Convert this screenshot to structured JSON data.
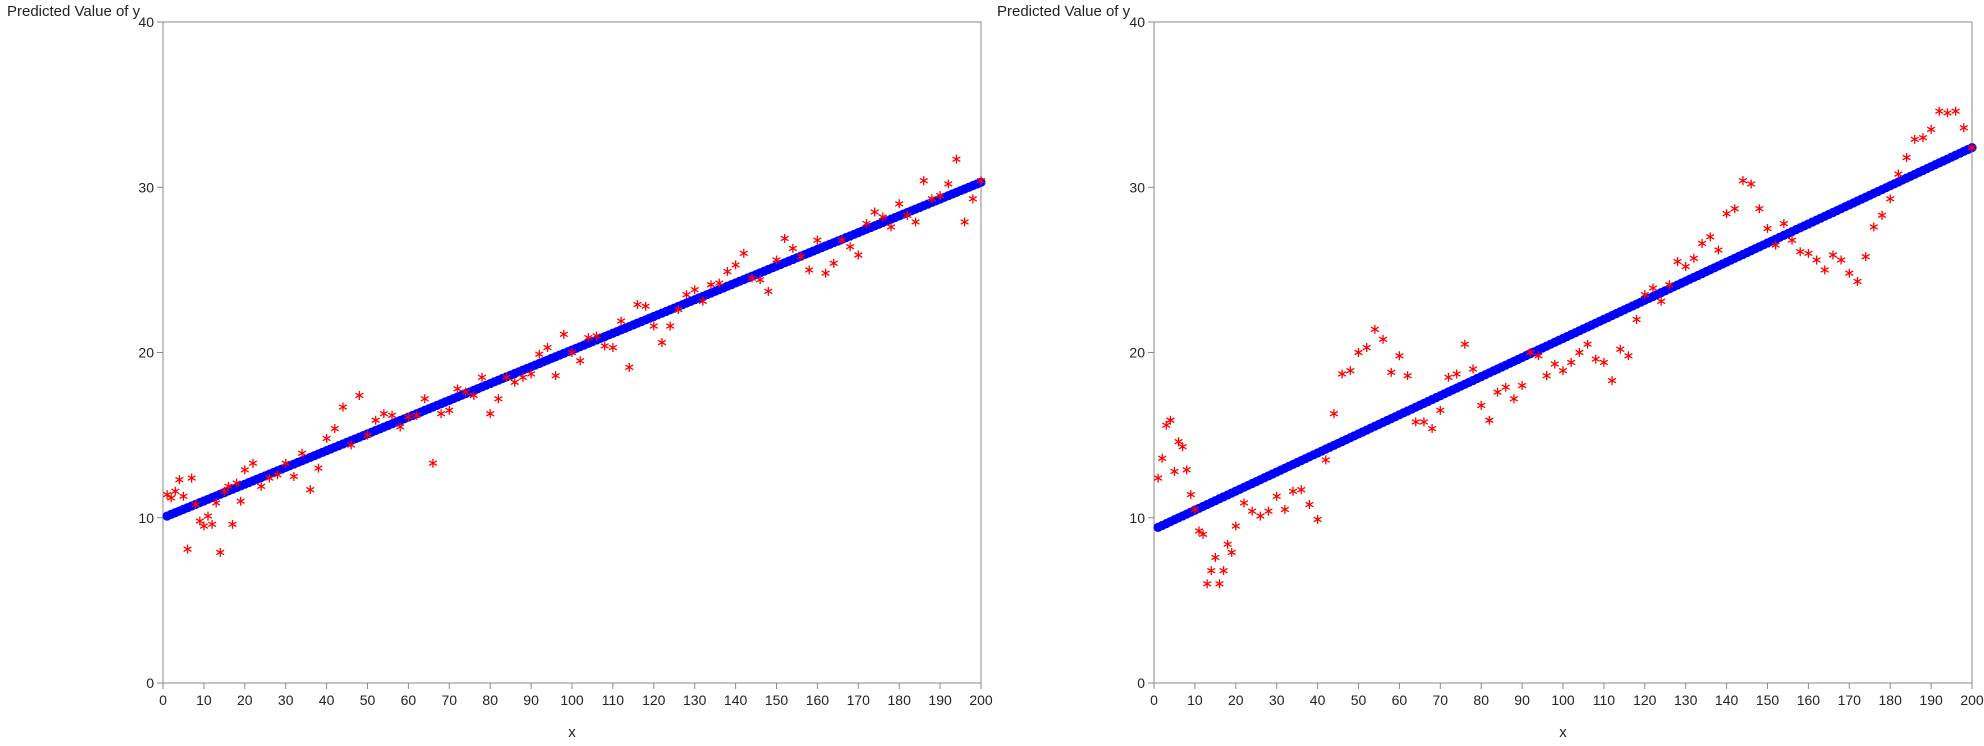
{
  "chart_data": [
    {
      "type": "scatter",
      "ylabel": "Predicted Value of y",
      "xlabel": "x",
      "xlim": [
        0,
        200
      ],
      "ylim": [
        0,
        40
      ],
      "xticks": [
        0,
        10,
        20,
        30,
        40,
        50,
        60,
        70,
        80,
        90,
        100,
        110,
        120,
        130,
        140,
        150,
        160,
        170,
        180,
        190,
        200
      ],
      "yticks": [
        0,
        10,
        20,
        30,
        40
      ],
      "grid": false,
      "series": [
        {
          "marker": "circle",
          "color": "#0000ff",
          "fit": {
            "intercept": 10.0,
            "slope": 0.1015
          },
          "x_range": [
            1,
            200
          ]
        },
        {
          "marker": "star",
          "color": "#ff0000",
          "x": [
            1,
            2,
            3,
            4,
            5,
            6,
            7,
            8,
            9,
            10,
            11,
            12,
            13,
            14,
            15,
            16,
            17,
            18,
            19,
            20,
            22,
            24,
            26,
            28,
            30,
            32,
            34,
            36,
            38,
            40,
            42,
            44,
            46,
            48,
            50,
            52,
            54,
            56,
            58,
            60,
            62,
            64,
            66,
            68,
            70,
            72,
            74,
            76,
            78,
            80,
            82,
            84,
            86,
            88,
            90,
            92,
            94,
            96,
            98,
            100,
            102,
            104,
            106,
            108,
            110,
            112,
            114,
            116,
            118,
            120,
            122,
            124,
            126,
            128,
            130,
            132,
            134,
            136,
            138,
            140,
            142,
            144,
            146,
            148,
            150,
            152,
            154,
            156,
            158,
            160,
            162,
            164,
            166,
            168,
            170,
            172,
            174,
            176,
            178,
            180,
            182,
            184,
            186,
            188,
            190,
            192,
            194,
            196,
            198,
            200
          ],
          "y": [
            11.4,
            11.2,
            11.6,
            12.3,
            11.3,
            8.1,
            12.4,
            10.8,
            9.8,
            9.5,
            10.1,
            9.6,
            10.9,
            7.9,
            11.6,
            11.9,
            9.6,
            12.1,
            11.0,
            12.9,
            13.3,
            11.9,
            12.4,
            12.6,
            13.3,
            12.5,
            13.9,
            11.7,
            13.0,
            14.8,
            15.4,
            16.7,
            14.4,
            17.4,
            15.0,
            15.9,
            16.3,
            16.2,
            15.5,
            16.1,
            16.2,
            17.2,
            13.3,
            16.3,
            16.5,
            17.8,
            17.6,
            17.4,
            18.5,
            16.3,
            17.2,
            18.5,
            18.2,
            18.5,
            18.7,
            19.9,
            20.3,
            18.6,
            21.1,
            20.0,
            19.5,
            20.9,
            21.0,
            20.4,
            20.3,
            21.9,
            19.1,
            22.9,
            22.8,
            21.6,
            20.6,
            21.6,
            22.6,
            23.5,
            23.8,
            23.1,
            24.1,
            24.2,
            24.9,
            25.3,
            26.0,
            24.5,
            24.4,
            23.7,
            25.6,
            26.9,
            26.3,
            25.8,
            25.0,
            26.8,
            24.8,
            25.4,
            26.8,
            26.4,
            25.9,
            27.8,
            28.5,
            28.2,
            27.6,
            29.0,
            28.3,
            27.9,
            30.4,
            29.3,
            29.5,
            30.2,
            31.7,
            27.9,
            29.3,
            30.4
          ]
        }
      ]
    },
    {
      "type": "scatter",
      "ylabel": "Predicted Value of y",
      "xlabel": "x",
      "xlim": [
        0,
        200
      ],
      "ylim": [
        0,
        40
      ],
      "xticks": [
        0,
        10,
        20,
        30,
        40,
        50,
        60,
        70,
        80,
        90,
        100,
        110,
        120,
        130,
        140,
        150,
        160,
        170,
        180,
        190,
        200
      ],
      "yticks": [
        0,
        10,
        20,
        30,
        40
      ],
      "grid": false,
      "series": [
        {
          "marker": "circle",
          "color": "#0000ff",
          "fit": {
            "intercept": 9.3,
            "slope": 0.1155
          },
          "x_range": [
            1,
            200
          ]
        },
        {
          "marker": "star",
          "color": "#ff0000",
          "x": [
            1,
            2,
            3,
            4,
            5,
            6,
            7,
            8,
            9,
            10,
            11,
            12,
            13,
            14,
            15,
            16,
            17,
            18,
            19,
            20,
            22,
            24,
            26,
            28,
            30,
            32,
            34,
            36,
            38,
            40,
            42,
            44,
            46,
            48,
            50,
            52,
            54,
            56,
            58,
            60,
            62,
            64,
            66,
            68,
            70,
            72,
            74,
            76,
            78,
            80,
            82,
            84,
            86,
            88,
            90,
            92,
            94,
            96,
            98,
            100,
            102,
            104,
            106,
            108,
            110,
            112,
            114,
            116,
            118,
            120,
            122,
            124,
            126,
            128,
            130,
            132,
            134,
            136,
            138,
            140,
            142,
            144,
            146,
            148,
            150,
            152,
            154,
            156,
            158,
            160,
            162,
            164,
            166,
            168,
            170,
            172,
            174,
            176,
            178,
            180,
            182,
            184,
            186,
            188,
            190,
            192,
            194,
            196,
            198,
            200
          ],
          "y": [
            12.4,
            13.6,
            15.6,
            15.9,
            12.8,
            14.6,
            14.3,
            12.9,
            11.4,
            10.5,
            9.2,
            9.0,
            6.0,
            6.8,
            7.6,
            6.0,
            6.8,
            8.4,
            7.9,
            9.5,
            10.9,
            10.4,
            10.1,
            10.4,
            11.3,
            10.5,
            11.6,
            11.7,
            10.8,
            9.9,
            13.5,
            16.3,
            18.7,
            18.9,
            20.0,
            20.3,
            21.4,
            20.8,
            18.8,
            19.8,
            18.6,
            15.8,
            15.8,
            15.4,
            16.5,
            18.5,
            18.7,
            20.5,
            19.0,
            16.8,
            15.9,
            17.6,
            17.9,
            17.2,
            18.0,
            20.0,
            19.8,
            18.6,
            19.3,
            18.9,
            19.4,
            20.0,
            20.5,
            19.6,
            19.4,
            18.3,
            20.2,
            19.8,
            22.0,
            23.5,
            23.9,
            23.1,
            24.1,
            25.5,
            25.2,
            25.7,
            26.6,
            27.0,
            26.2,
            28.4,
            28.7,
            30.4,
            30.2,
            28.7,
            27.5,
            26.5,
            27.8,
            26.8,
            26.1,
            26.0,
            25.6,
            25.0,
            25.9,
            25.6,
            24.8,
            24.3,
            25.8,
            27.6,
            28.3,
            29.3,
            30.8,
            31.8,
            32.9,
            33.0,
            33.5,
            34.6,
            34.5,
            34.6,
            33.6,
            32.4
          ]
        }
      ]
    }
  ]
}
